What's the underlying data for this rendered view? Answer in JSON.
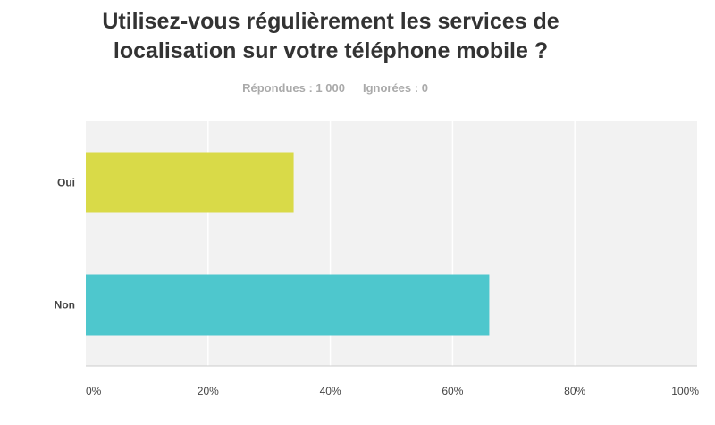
{
  "title_lines": [
    "Utilisez-vous régulièrement les services de",
    "localisation sur votre téléphone mobile ?"
  ],
  "stats": {
    "answered": "Répondues : 1 000",
    "skipped": "Ignorées : 0"
  },
  "colors": {
    "plot_background": "#f2f2f2",
    "gridline": "#ffffff",
    "axis": "#cccccc"
  },
  "chart_data": {
    "type": "bar",
    "orientation": "horizontal",
    "categories": [
      "Oui",
      "Non"
    ],
    "values": [
      34,
      66
    ],
    "colors": [
      "#d9da48",
      "#4ec7cd"
    ],
    "xlim": [
      0,
      100
    ],
    "xticks": [
      0,
      20,
      40,
      60,
      80,
      100
    ],
    "xtick_labels": [
      "0%",
      "20%",
      "40%",
      "60%",
      "80%",
      "100%"
    ],
    "grid": true
  }
}
